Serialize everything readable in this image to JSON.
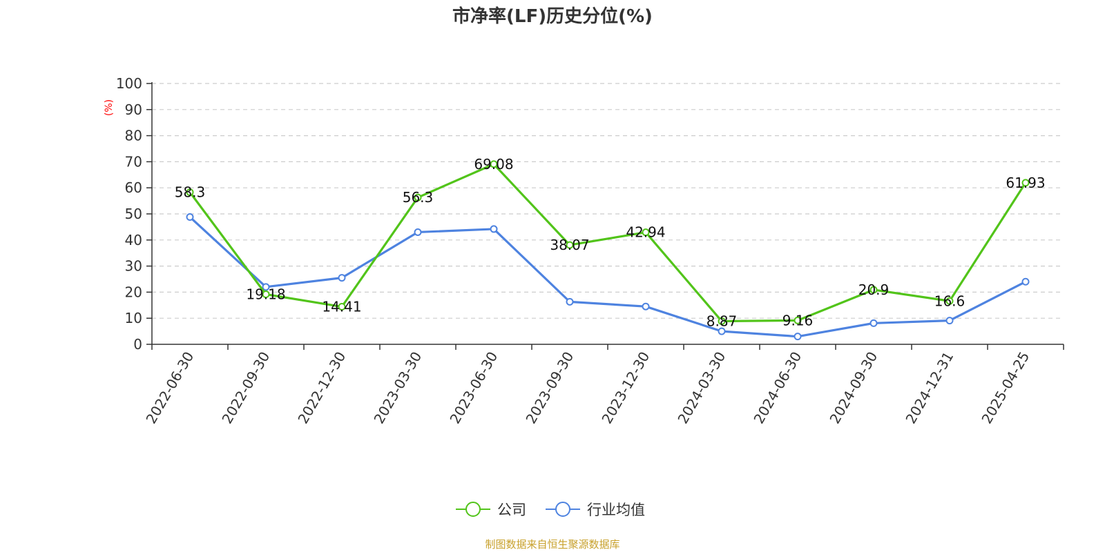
{
  "chart_data": {
    "type": "line",
    "title": "市净率(LF)历史分位(%)",
    "ylabel": "(%)",
    "ylim": [
      0,
      100
    ],
    "yticks": [
      0,
      10,
      20,
      30,
      40,
      50,
      60,
      70,
      80,
      90,
      100
    ],
    "grid": true,
    "categories": [
      "2022-06-30",
      "2022-09-30",
      "2022-12-30",
      "2023-03-30",
      "2023-06-30",
      "2023-09-30",
      "2023-12-30",
      "2024-03-30",
      "2024-06-30",
      "2024-09-30",
      "2024-12-31",
      "2025-04-25"
    ],
    "series": [
      {
        "name": "公司",
        "color": "#52c41a",
        "values": [
          58.3,
          19.18,
          14.41,
          56.3,
          69.08,
          38.07,
          42.94,
          8.87,
          9.16,
          20.9,
          16.6,
          61.93
        ],
        "labels": [
          "58.3",
          "19.18",
          "14.41",
          "56.3",
          "69.08",
          "38.07",
          "42.94",
          "8.87",
          "9.16",
          "20.9",
          "16.6",
          "61.93"
        ]
      },
      {
        "name": "行业均值",
        "color": "#4e83e0",
        "values": [
          48.8,
          22.0,
          25.5,
          43.0,
          44.2,
          16.3,
          14.5,
          5.0,
          3.0,
          8.1,
          9.1,
          24.0
        ]
      }
    ],
    "legend_position": "bottom-center",
    "ylabel_color": "#ff0000"
  },
  "source": {
    "text": "制图数据来自恒生聚源数据库",
    "color": "#c8a12c"
  }
}
